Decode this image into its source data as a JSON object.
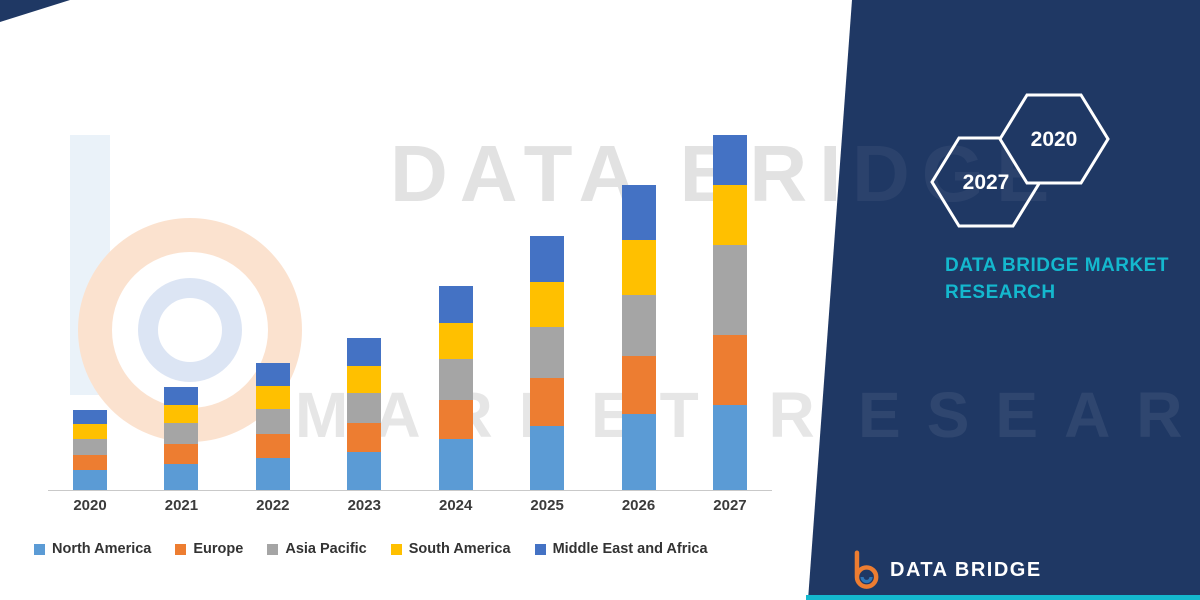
{
  "watermark": {
    "line1": "DATA BRIDGE",
    "line2": "MARKET RESEARCH",
    "panel_continuation_line1": "DGE",
    "panel_continuation_line2": "ESEARCH"
  },
  "title_panel": {
    "hexagon_labels": [
      "2027",
      "2020"
    ],
    "heading_line1": "DATA BRIDGE MARKET",
    "heading_line2": "RESEARCH",
    "logo_text": "DATA BRIDGE",
    "panel_color": "#1F3864",
    "accent_color": "#14B8CE"
  },
  "chart_data": {
    "type": "bar",
    "stacked": true,
    "title": "",
    "xlabel": "",
    "ylabel": "",
    "value_axis_visible": false,
    "grid": false,
    "legend_position": "bottom",
    "categories": [
      "2020",
      "2021",
      "2022",
      "2023",
      "2024",
      "2025",
      "2026",
      "2027"
    ],
    "series": [
      {
        "name": "North America",
        "color": "#5B9BD5",
        "values": [
          20,
          26,
          32,
          38,
          51,
          64,
          76,
          85
        ]
      },
      {
        "name": "Europe",
        "color": "#ED7D31",
        "values": [
          15,
          20,
          24,
          29,
          39,
          48,
          58,
          70
        ]
      },
      {
        "name": "Asia Pacific",
        "color": "#A5A5A5",
        "values": [
          16,
          21,
          25,
          30,
          41,
          51,
          61,
          90
        ]
      },
      {
        "name": "South America",
        "color": "#FFC000",
        "values": [
          15,
          18,
          23,
          27,
          36,
          45,
          55,
          60
        ]
      },
      {
        "name": "Middle East and Africa",
        "color": "#4472C4",
        "values": [
          14,
          18,
          23,
          28,
          37,
          46,
          55,
          50
        ]
      }
    ]
  }
}
